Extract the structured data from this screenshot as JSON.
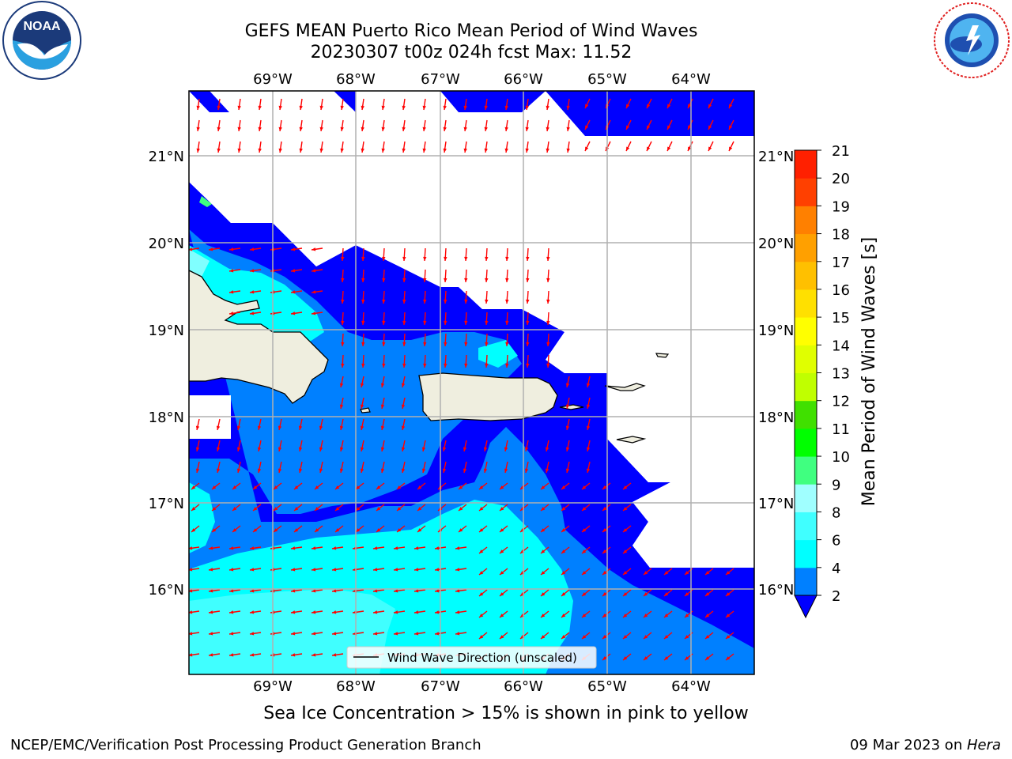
{
  "header": {
    "title_line1": "GEFS MEAN Puerto Rico Mean Period of Wind Waves",
    "title_line2": "20230307 t00z 024h fcst   Max: 11.52"
  },
  "logos": {
    "left": {
      "text": "NOAA",
      "ring_text": "NATIONAL OCEANIC AND ATMOSPHERIC ADMINISTRATION · U.S. DEPARTMENT OF COMMERCE"
    },
    "right": {
      "ring_text": "NATIONAL WEATHER SERVICE"
    }
  },
  "map": {
    "lon_labels": [
      "69°W",
      "68°W",
      "67°W",
      "66°W",
      "65°W",
      "64°W"
    ],
    "lat_labels": [
      "21°N",
      "20°N",
      "19°N",
      "18°N",
      "17°N",
      "16°N"
    ],
    "legend_label": "Wind Wave Direction (unscaled)",
    "colors": {
      "land": "#efeedf",
      "arrow": "#ff0000",
      "grid": "#b0b0b0"
    }
  },
  "colorbar": {
    "label": "Mean Period of Wind Waves [s]",
    "ticks": [
      "2",
      "4",
      "6",
      "8",
      "9",
      "10",
      "11",
      "12",
      "13",
      "14",
      "15",
      "16",
      "17",
      "18",
      "19",
      "20",
      "21"
    ],
    "colors": [
      "#0000ff",
      "#0080ff",
      "#00ffff",
      "#40ffff",
      "#a0ffff",
      "#40ff80",
      "#00ff00",
      "#40e000",
      "#c0ff00",
      "#e0ff00",
      "#ffff00",
      "#ffe000",
      "#ffc000",
      "#ffa000",
      "#ff8000",
      "#ff4000",
      "#ff2000",
      "#ff0000"
    ]
  },
  "caption": "Sea Ice Concentration > 15% is shown in pink to yellow",
  "footer": {
    "left": "NCEP/EMC/Verification Post Processing Product Generation Branch",
    "right_date": "09 Mar 2023 on ",
    "right_host": "Hera"
  }
}
